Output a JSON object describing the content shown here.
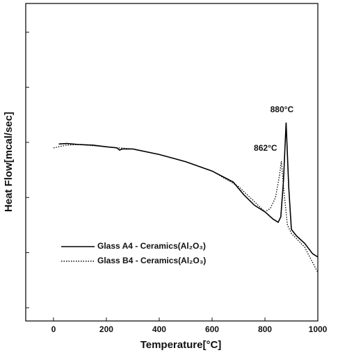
{
  "chart_data": {
    "type": "line",
    "x_label": "Temperature[°C]",
    "y_label": "Heat Flow[mcal/sec]",
    "xlim": [
      -105,
      1000
    ],
    "xticks": [
      0,
      200,
      400,
      600,
      800,
      1000
    ],
    "ylim": [
      0.76,
      6.52
    ],
    "yticks": [
      1,
      2,
      3,
      4,
      5,
      6
    ],
    "legend": "lower-left",
    "series": [
      {
        "name": "Glass A4 - Ceramics(Al₂O₃)",
        "color": "#000000",
        "dash": "solid",
        "x": [
          20,
          50,
          100,
          150,
          200,
          240,
          250,
          260,
          300,
          400,
          500,
          600,
          680,
          720,
          760,
          800,
          830,
          850,
          860,
          870,
          880,
          890,
          900,
          920,
          950,
          980,
          1000
        ],
        "values": [
          3.97,
          3.98,
          3.96,
          3.95,
          3.92,
          3.9,
          3.86,
          3.88,
          3.88,
          3.78,
          3.65,
          3.48,
          3.28,
          3.05,
          2.86,
          2.74,
          2.61,
          2.55,
          2.65,
          3.3,
          4.36,
          3.18,
          2.42,
          2.3,
          2.17,
          1.98,
          1.92
        ]
      },
      {
        "name": "Glass B4 - Ceramics(Al₂O₃)",
        "color": "#000000",
        "dash": "dotted",
        "x": [
          0,
          50,
          100,
          200,
          300,
          400,
          500,
          600,
          700,
          800,
          820,
          840,
          855,
          862,
          872,
          885,
          900,
          950,
          1000
        ],
        "values": [
          3.9,
          3.95,
          3.96,
          3.92,
          3.88,
          3.78,
          3.65,
          3.48,
          3.2,
          2.74,
          2.8,
          3.0,
          3.4,
          3.66,
          3.1,
          2.5,
          2.35,
          2.1,
          1.64
        ]
      }
    ],
    "annotations": [
      {
        "text": "880°C",
        "x": 880,
        "y": 4.36
      },
      {
        "text": "862°C",
        "x": 862,
        "y": 3.66
      }
    ]
  }
}
